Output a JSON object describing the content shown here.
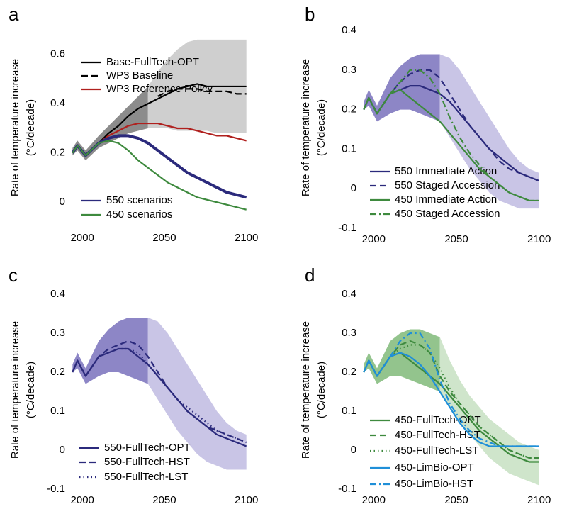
{
  "chart_data": [
    {
      "type": "line",
      "panel": "a",
      "ylabel": [
        "Rate of temperature increase",
        "(°C/decade)"
      ],
      "xlim": [
        1993,
        2101
      ],
      "xticks": [
        2000,
        2050,
        2100
      ],
      "ylim": [
        -0.1,
        0.7
      ],
      "yticks": [
        0,
        0.2,
        0.4,
        0.6
      ],
      "x": [
        1994,
        1997,
        2002,
        2010,
        2016,
        2022,
        2028,
        2034,
        2040,
        2046,
        2052,
        2058,
        2064,
        2070,
        2076,
        2082,
        2088,
        2094,
        2100
      ],
      "bands": [
        {
          "color": "#8c8c8c",
          "x": [
            1994,
            1997,
            2002,
            2010,
            2016,
            2022,
            2028,
            2034,
            2040
          ],
          "lower": [
            0.19,
            0.21,
            0.17,
            0.22,
            0.24,
            0.26,
            0.28,
            0.29,
            0.3
          ],
          "upper": [
            0.22,
            0.25,
            0.21,
            0.27,
            0.31,
            0.35,
            0.39,
            0.43,
            0.47
          ]
        },
        {
          "color": "#cfcfcf",
          "x": [
            2040,
            2046,
            2052,
            2058,
            2064,
            2070,
            2076,
            2082,
            2088,
            2094,
            2100
          ],
          "lower": [
            0.3,
            0.3,
            0.3,
            0.29,
            0.29,
            0.29,
            0.29,
            0.28,
            0.28,
            0.28,
            0.28
          ],
          "upper": [
            0.47,
            0.53,
            0.58,
            0.62,
            0.65,
            0.66,
            0.66,
            0.66,
            0.66,
            0.66,
            0.66
          ]
        }
      ],
      "series": [
        {
          "name": "Base-FullTech-OPT",
          "color": "#000000",
          "style": "solid",
          "values": [
            0.2,
            0.23,
            0.19,
            0.24,
            0.28,
            0.31,
            0.35,
            0.38,
            0.4,
            0.42,
            0.44,
            0.46,
            0.47,
            0.48,
            0.47,
            0.47,
            0.47,
            0.47,
            0.47
          ]
        },
        {
          "name": "WP3 Baseline",
          "color": "#000000",
          "style": "dashed",
          "values": [
            null,
            null,
            null,
            null,
            null,
            null,
            null,
            null,
            null,
            0.43,
            0.45,
            0.46,
            0.46,
            0.46,
            0.45,
            0.45,
            0.45,
            0.44,
            0.44
          ]
        },
        {
          "name": "WP3 Reference Policy",
          "color": "#b0201e",
          "style": "solid",
          "values": [
            null,
            null,
            null,
            0.24,
            0.27,
            0.29,
            0.31,
            0.32,
            0.32,
            0.32,
            0.31,
            0.3,
            0.3,
            0.29,
            0.28,
            0.27,
            0.27,
            0.26,
            0.25
          ]
        },
        {
          "name": "550 scenarios",
          "color": "#2b2a7c",
          "style": "solid",
          "values": [
            0.2,
            0.23,
            0.19,
            0.24,
            0.26,
            0.27,
            0.27,
            0.26,
            0.24,
            0.21,
            0.18,
            0.15,
            0.12,
            0.1,
            0.08,
            0.06,
            0.04,
            0.03,
            0.02
          ]
        },
        {
          "name": "450 scenarios",
          "color": "#3e8a3e",
          "style": "solid",
          "values": [
            0.2,
            0.23,
            0.19,
            0.24,
            0.25,
            0.24,
            0.21,
            0.17,
            0.14,
            0.11,
            0.08,
            0.06,
            0.04,
            0.02,
            0.01,
            0.0,
            -0.01,
            -0.02,
            -0.03
          ]
        }
      ]
    },
    {
      "type": "line",
      "panel": "b",
      "ylabel": [
        "Rate of temperature increase",
        "(°C/decade)"
      ],
      "xlim": [
        1993,
        2101
      ],
      "xticks": [
        2000,
        2050,
        2100
      ],
      "ylim": [
        -0.1,
        0.4
      ],
      "yticks": [
        -0.1,
        0,
        0.1,
        0.2,
        0.3,
        0.4
      ],
      "x": [
        1994,
        1997,
        2002,
        2010,
        2016,
        2022,
        2028,
        2034,
        2040,
        2046,
        2052,
        2058,
        2064,
        2070,
        2076,
        2082,
        2088,
        2094,
        2100
      ],
      "bands": [
        {
          "color": "#8d86c6",
          "x": [
            1994,
            1997,
            2002,
            2010,
            2016,
            2022,
            2028,
            2034,
            2040
          ],
          "lower": [
            0.2,
            0.21,
            0.17,
            0.19,
            0.2,
            0.2,
            0.19,
            0.18,
            0.17
          ],
          "upper": [
            0.22,
            0.25,
            0.21,
            0.28,
            0.31,
            0.33,
            0.34,
            0.34,
            0.34
          ]
        },
        {
          "color": "#c9c5e6",
          "x": [
            2040,
            2046,
            2052,
            2058,
            2064,
            2070,
            2076,
            2082,
            2088,
            2094,
            2100
          ],
          "lower": [
            0.17,
            0.13,
            0.09,
            0.05,
            0.02,
            -0.01,
            -0.03,
            -0.04,
            -0.05,
            -0.05,
            -0.05
          ],
          "upper": [
            0.34,
            0.33,
            0.3,
            0.26,
            0.22,
            0.18,
            0.14,
            0.1,
            0.07,
            0.05,
            0.04
          ]
        }
      ],
      "series": [
        {
          "name": "550 Immediate Action",
          "color": "#2b2a7c",
          "style": "solid",
          "values": [
            0.2,
            0.23,
            0.19,
            0.24,
            0.25,
            0.26,
            0.26,
            0.25,
            0.24,
            0.22,
            0.19,
            0.16,
            0.13,
            0.1,
            0.08,
            0.06,
            0.04,
            0.03,
            0.02
          ]
        },
        {
          "name": "550 Staged Accession",
          "color": "#2b2a7c",
          "style": "dashed",
          "values": [
            0.2,
            0.23,
            0.19,
            0.24,
            0.27,
            0.29,
            0.3,
            0.3,
            0.28,
            0.24,
            0.2,
            0.16,
            0.13,
            0.1,
            0.07,
            0.05,
            0.04,
            0.03,
            0.02
          ]
        },
        {
          "name": "450 Immediate Action",
          "color": "#3e8a3e",
          "style": "solid",
          "values": [
            0.2,
            0.23,
            0.19,
            0.24,
            0.25,
            0.23,
            0.21,
            0.19,
            0.17,
            0.14,
            0.11,
            0.08,
            0.05,
            0.03,
            0.01,
            -0.01,
            -0.02,
            -0.03,
            -0.03
          ]
        },
        {
          "name": "450 Staged Accession",
          "color": "#3e8a3e",
          "style": "dashdot",
          "values": [
            0.2,
            0.23,
            0.19,
            0.24,
            0.27,
            0.3,
            0.3,
            0.28,
            0.24,
            0.18,
            0.13,
            0.09,
            0.06,
            0.03,
            0.01,
            -0.01,
            -0.02,
            -0.03,
            -0.03
          ]
        }
      ]
    },
    {
      "type": "line",
      "panel": "c",
      "ylabel": [
        "Rate of temperature increase",
        "(°C/decade)"
      ],
      "xlim": [
        1993,
        2101
      ],
      "xticks": [
        2000,
        2050,
        2100
      ],
      "ylim": [
        -0.1,
        0.4
      ],
      "yticks": [
        -0.1,
        0,
        0.1,
        0.2,
        0.3,
        0.4
      ],
      "x": [
        1994,
        1997,
        2002,
        2010,
        2016,
        2022,
        2028,
        2034,
        2040,
        2046,
        2052,
        2058,
        2064,
        2070,
        2076,
        2082,
        2088,
        2094,
        2100
      ],
      "bands": [
        {
          "color": "#8d86c6",
          "x": [
            1994,
            1997,
            2002,
            2010,
            2016,
            2022,
            2028,
            2034,
            2040
          ],
          "lower": [
            0.2,
            0.21,
            0.17,
            0.19,
            0.2,
            0.2,
            0.19,
            0.18,
            0.17
          ],
          "upper": [
            0.22,
            0.25,
            0.21,
            0.28,
            0.31,
            0.33,
            0.34,
            0.34,
            0.34
          ]
        },
        {
          "color": "#c9c5e6",
          "x": [
            2040,
            2046,
            2052,
            2058,
            2064,
            2070,
            2076,
            2082,
            2088,
            2094,
            2100
          ],
          "lower": [
            0.17,
            0.13,
            0.09,
            0.05,
            0.02,
            -0.01,
            -0.03,
            -0.04,
            -0.05,
            -0.05,
            -0.05
          ],
          "upper": [
            0.34,
            0.33,
            0.3,
            0.26,
            0.22,
            0.18,
            0.14,
            0.1,
            0.07,
            0.05,
            0.04
          ]
        }
      ],
      "series": [
        {
          "name": "550-FullTech-OPT",
          "color": "#2b2a7c",
          "style": "solid",
          "values": [
            0.2,
            0.23,
            0.19,
            0.24,
            0.25,
            0.26,
            0.26,
            0.24,
            0.22,
            0.19,
            0.16,
            0.13,
            0.1,
            0.08,
            0.06,
            0.04,
            0.03,
            0.02,
            0.01
          ]
        },
        {
          "name": "550-FullTech-HST",
          "color": "#2b2a7c",
          "style": "dashed",
          "values": [
            0.2,
            0.23,
            0.19,
            0.24,
            0.26,
            0.27,
            0.28,
            0.27,
            0.24,
            0.2,
            0.16,
            0.13,
            0.1,
            0.08,
            0.06,
            0.05,
            0.04,
            0.03,
            0.02
          ]
        },
        {
          "name": "550-FullTech-LST",
          "color": "#2b2a7c",
          "style": "dotted",
          "values": [
            0.2,
            0.23,
            0.19,
            0.24,
            0.25,
            0.26,
            0.26,
            0.25,
            0.22,
            0.19,
            0.16,
            0.13,
            0.11,
            0.09,
            0.07,
            0.05,
            0.04,
            0.03,
            0.02
          ]
        }
      ]
    },
    {
      "type": "line",
      "panel": "d",
      "ylabel": [
        "Rate of temperature increase",
        "(°C/decade)"
      ],
      "xlim": [
        1993,
        2101
      ],
      "xticks": [
        2000,
        2050,
        2100
      ],
      "ylim": [
        -0.1,
        0.4
      ],
      "yticks": [
        -0.1,
        0,
        0.1,
        0.2,
        0.3,
        0.4
      ],
      "x": [
        1994,
        1997,
        2002,
        2010,
        2016,
        2022,
        2028,
        2034,
        2040,
        2046,
        2052,
        2058,
        2064,
        2070,
        2076,
        2082,
        2088,
        2094,
        2100
      ],
      "bands": [
        {
          "color": "#93c48d",
          "x": [
            1994,
            1997,
            2002,
            2010,
            2016,
            2022,
            2028,
            2034,
            2040
          ],
          "lower": [
            0.2,
            0.21,
            0.17,
            0.19,
            0.19,
            0.18,
            0.17,
            0.16,
            0.15
          ],
          "upper": [
            0.22,
            0.25,
            0.21,
            0.28,
            0.3,
            0.31,
            0.31,
            0.3,
            0.29
          ]
        },
        {
          "color": "#cfe5cb",
          "x": [
            2040,
            2046,
            2052,
            2058,
            2064,
            2070,
            2076,
            2082,
            2088,
            2094,
            2100
          ],
          "lower": [
            0.15,
            0.11,
            0.07,
            0.04,
            0.01,
            -0.02,
            -0.04,
            -0.06,
            -0.07,
            -0.08,
            -0.09
          ],
          "upper": [
            0.29,
            0.23,
            0.18,
            0.14,
            0.11,
            0.08,
            0.06,
            0.04,
            0.02,
            0.01,
            0.0
          ]
        }
      ],
      "series": [
        {
          "name": "450-FullTech-OPT",
          "color": "#3e8a3e",
          "style": "solid",
          "values": [
            0.2,
            0.23,
            0.19,
            0.24,
            0.25,
            0.23,
            0.21,
            0.19,
            0.17,
            0.14,
            0.11,
            0.08,
            0.05,
            0.03,
            0.01,
            -0.01,
            -0.02,
            -0.03,
            -0.03
          ]
        },
        {
          "name": "450-FullTech-HST",
          "color": "#3e8a3e",
          "style": "dashed",
          "values": [
            0.2,
            0.23,
            0.19,
            0.24,
            0.27,
            0.28,
            0.27,
            0.25,
            0.19,
            0.15,
            0.12,
            0.09,
            0.06,
            0.04,
            0.02,
            0.0,
            -0.01,
            -0.02,
            -0.02
          ]
        },
        {
          "name": "450-FullTech-LST",
          "color": "#3e8a3e",
          "style": "dotted",
          "values": [
            0.2,
            0.23,
            0.19,
            0.24,
            0.26,
            0.27,
            0.27,
            0.25,
            0.21,
            0.16,
            0.12,
            0.09,
            0.06,
            0.04,
            0.02,
            0.0,
            -0.01,
            -0.02,
            -0.02
          ]
        },
        {
          "name": "450-LimBio-OPT",
          "color": "#1f8fd8",
          "style": "solid",
          "values": [
            0.2,
            0.23,
            0.19,
            0.24,
            0.25,
            0.24,
            0.22,
            0.19,
            0.15,
            0.11,
            0.07,
            0.04,
            0.02,
            0.01,
            0.01,
            0.01,
            0.01,
            0.01,
            0.01
          ]
        },
        {
          "name": "450-LimBio-HST",
          "color": "#1f8fd8",
          "style": "dashdot",
          "values": [
            0.2,
            0.23,
            0.19,
            0.24,
            0.28,
            0.3,
            0.3,
            0.26,
            0.18,
            0.12,
            0.08,
            0.05,
            0.03,
            0.02,
            0.01,
            0.01,
            0.01,
            0.01,
            0.01
          ]
        }
      ]
    }
  ]
}
